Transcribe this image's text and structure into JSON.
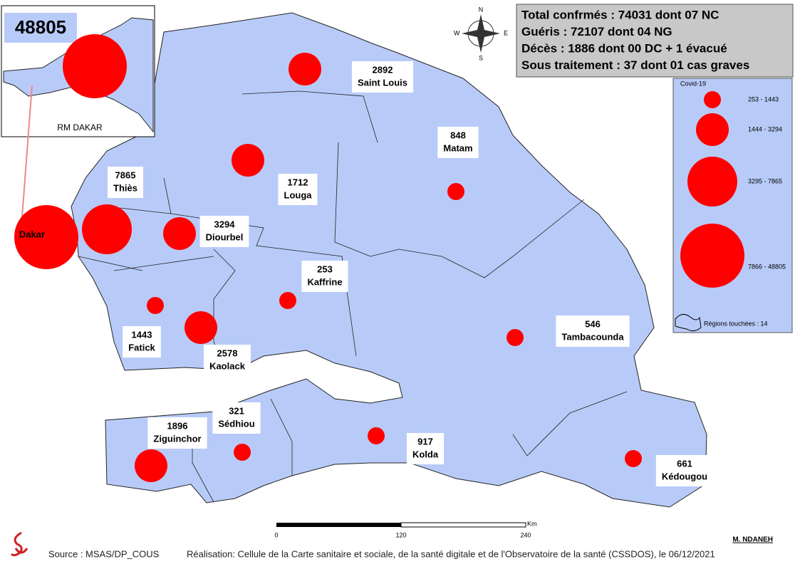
{
  "inset": {
    "value": "48805",
    "title": "RM DAKAR"
  },
  "dakar_label": "Dakar",
  "regions": [
    {
      "name": "Thiès",
      "value": 7865
    },
    {
      "name": "Diourbel",
      "value": 3294
    },
    {
      "name": "Louga",
      "value": 1712
    },
    {
      "name": "Saint Louis",
      "value": 2892
    },
    {
      "name": "Matam",
      "value": 848
    },
    {
      "name": "Kaffrine",
      "value": 253
    },
    {
      "name": "Fatick",
      "value": 1443
    },
    {
      "name": "Kaolack",
      "value": 2578
    },
    {
      "name": "Tambacounda",
      "value": 546
    },
    {
      "name": "Ziguinchor",
      "value": 1896
    },
    {
      "name": "Sédhiou",
      "value": 321
    },
    {
      "name": "Kolda",
      "value": 917
    },
    {
      "name": "Kédougou",
      "value": 661
    }
  ],
  "summary": [
    "Total confrmés : 74031 dont 07 NC",
    "Guéris : 72107 dont 04 NG",
    "Décès : 1886 dont 00 DC + 1 évacué",
    "Sous traitement : 37 dont 01 cas graves"
  ],
  "legend": {
    "title": "Covid-19",
    "classes": [
      "253 - 1443",
      "1444 - 3294",
      "3295 - 7865",
      "7866 - 48805"
    ],
    "regions_note": "Régions touchées : 14"
  },
  "compass": {
    "n": "N",
    "s": "S",
    "e": "E",
    "w": "W"
  },
  "scale": {
    "ticks": [
      "0",
      "120",
      "240"
    ],
    "unit": "Km"
  },
  "author": "M. NDANEH",
  "source": "Source : MSAS/DP_COUS",
  "credit": "Réalisation: Cellule de la Carte sanitaire et sociale, de la santé digitale et de l'Observatoire de la santé (CSSDOS), le 06/12/2021"
}
